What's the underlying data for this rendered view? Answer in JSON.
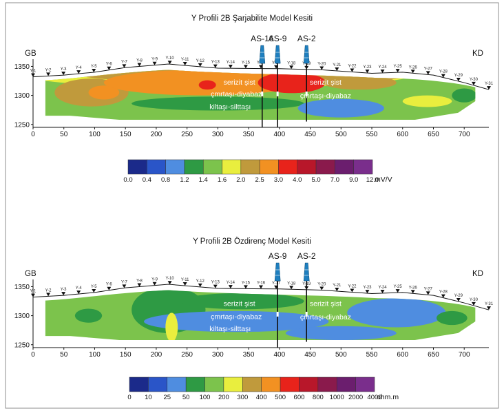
{
  "colors": {
    "background": "#ffffff",
    "frame": "#8c8c8c",
    "line": "#111111",
    "well_blue": "#1f7fbf"
  },
  "chart_data": [
    {
      "type": "heatmap",
      "title": "Y Profili 2B Şarjabilite Model Kesiti",
      "left_label": "GB",
      "right_label": "KD",
      "xlim": [
        0,
        740
      ],
      "ylim": [
        1245,
        1360
      ],
      "xticks": [
        0,
        50,
        100,
        150,
        200,
        250,
        300,
        350,
        400,
        450,
        500,
        550,
        600,
        650,
        700
      ],
      "yticks": [
        1350,
        1300,
        1250
      ],
      "stations": [
        "Y-1",
        "Y-2",
        "Y-3",
        "Y-4",
        "Y-5",
        "Y-6",
        "Y-7",
        "Y-8",
        "Y-9",
        "Y-10",
        "Y-11",
        "Y-12",
        "Y-13",
        "Y-14",
        "Y-15",
        "Y-16",
        "Y-17",
        "Y-18",
        "Y-19",
        "Y-20",
        "Y-21",
        "Y-22",
        "Y-23",
        "Y-24",
        "Y-25",
        "Y-26",
        "Y-27",
        "Y-28",
        "Y-29",
        "Y-30",
        "Y-31"
      ],
      "topography": [
        {
          "x": 0,
          "z": 1332
        },
        {
          "x": 50,
          "z": 1335
        },
        {
          "x": 100,
          "z": 1340
        },
        {
          "x": 150,
          "z": 1348
        },
        {
          "x": 220,
          "z": 1354
        },
        {
          "x": 300,
          "z": 1347
        },
        {
          "x": 400,
          "z": 1346
        },
        {
          "x": 470,
          "z": 1344
        },
        {
          "x": 550,
          "z": 1338
        },
        {
          "x": 600,
          "z": 1340
        },
        {
          "x": 650,
          "z": 1335
        },
        {
          "x": 700,
          "z": 1322
        },
        {
          "x": 740,
          "z": 1310
        }
      ],
      "wells": [
        {
          "name": "AS-16",
          "x": 372,
          "bottom": 1245
        },
        {
          "name": "AS-9",
          "x": 397,
          "bottom": 1245
        },
        {
          "name": "AS-2",
          "x": 444,
          "bottom": 1255
        }
      ],
      "lithology_labels": [
        {
          "text": "serizit şist",
          "x": 335,
          "z": 1322
        },
        {
          "text": "çmrtaşı-diyabaz",
          "x": 330,
          "z": 1302
        },
        {
          "text": "kiltaşı-silttaşı",
          "x": 320,
          "z": 1280
        },
        {
          "text": "serizit şist",
          "x": 475,
          "z": 1322
        },
        {
          "text": "çmrtaşı-diyabaz",
          "x": 475,
          "z": 1299
        }
      ],
      "colorbar": {
        "ticks": [
          "0.0",
          "0.4",
          "0.8",
          "1.2",
          "1.4",
          "1.6",
          "2.0",
          "2.5",
          "3.0",
          "4.0",
          "5.0",
          "7.0",
          "9.0",
          "12.0"
        ],
        "unit": "mV/V",
        "colors": [
          "#1b2a8a",
          "#2a55c8",
          "#4f8de0",
          "#2e9a44",
          "#7cc34c",
          "#e9ee3e",
          "#c09a3c",
          "#f29122",
          "#e8231b",
          "#b8172a",
          "#8a1a4c",
          "#6b1e6e",
          "#7a2e8c"
        ]
      },
      "model_regions": [
        {
          "value": "2.5",
          "description": "brown band below the model top"
        },
        {
          "value": "3.0",
          "description": "large orange body x 150-400"
        },
        {
          "value": "5.0",
          "description": "red cores near AS-16 and AS-2"
        },
        {
          "value": "1.4",
          "description": "green lower bands"
        },
        {
          "value": "0.8",
          "description": "blue lenses near the base"
        }
      ]
    },
    {
      "type": "heatmap",
      "title": "Y Profili 2B Özdirenç Model Kesiti",
      "left_label": "GB",
      "right_label": "KD",
      "xlim": [
        0,
        740
      ],
      "ylim": [
        1245,
        1360
      ],
      "xticks": [
        0,
        50,
        100,
        150,
        200,
        250,
        300,
        350,
        400,
        450,
        500,
        550,
        600,
        650,
        700
      ],
      "yticks": [
        1350,
        1300,
        1250
      ],
      "stations": [
        "Y-1",
        "Y-2",
        "Y-3",
        "Y-4",
        "Y-5",
        "Y-6",
        "Y-7",
        "Y-8",
        "Y-9",
        "Y-10",
        "Y-11",
        "Y-12",
        "Y-13",
        "Y-14",
        "Y-15",
        "Y-16",
        "Y-17",
        "Y-18",
        "Y-19",
        "Y-20",
        "Y-21",
        "Y-22",
        "Y-23",
        "Y-24",
        "Y-25",
        "Y-26",
        "Y-27",
        "Y-28",
        "Y-29",
        "Y-30",
        "Y-31"
      ],
      "topography": [
        {
          "x": 0,
          "z": 1332
        },
        {
          "x": 50,
          "z": 1335
        },
        {
          "x": 100,
          "z": 1340
        },
        {
          "x": 150,
          "z": 1348
        },
        {
          "x": 220,
          "z": 1354
        },
        {
          "x": 300,
          "z": 1347
        },
        {
          "x": 400,
          "z": 1346
        },
        {
          "x": 470,
          "z": 1344
        },
        {
          "x": 550,
          "z": 1338
        },
        {
          "x": 600,
          "z": 1340
        },
        {
          "x": 650,
          "z": 1335
        },
        {
          "x": 700,
          "z": 1322
        },
        {
          "x": 740,
          "z": 1310
        }
      ],
      "wells": [
        {
          "name": "AS-9",
          "x": 397,
          "bottom": 1245
        },
        {
          "name": "AS-2",
          "x": 444,
          "bottom": 1255
        }
      ],
      "lithology_labels": [
        {
          "text": "serizit şist",
          "x": 335,
          "z": 1320
        },
        {
          "text": "çmrtaşı-diyabaz",
          "x": 330,
          "z": 1298
        },
        {
          "text": "kiltaşı-silttaşı",
          "x": 320,
          "z": 1277
        },
        {
          "text": "serizit şist",
          "x": 475,
          "z": 1320
        },
        {
          "text": "çmrtaşı-diyabaz",
          "x": 475,
          "z": 1297
        }
      ],
      "colorbar": {
        "ticks": [
          "0",
          "10",
          "25",
          "50",
          "100",
          "200",
          "300",
          "400",
          "500",
          "600",
          "800",
          "1000",
          "2000",
          "4000"
        ],
        "unit": "ohm.m",
        "colors": [
          "#1b2a8a",
          "#2a55c8",
          "#4f8de0",
          "#2e9a44",
          "#7cc34c",
          "#e9ee3e",
          "#c09a3c",
          "#f29122",
          "#e8231b",
          "#b8172a",
          "#8a1a4c",
          "#6b1e6e",
          "#7a2e8c"
        ]
      },
      "model_regions": [
        {
          "value": "100",
          "description": "light green background"
        },
        {
          "value": "50",
          "description": "blue lower bodies"
        },
        {
          "value": "200",
          "description": "dark green upper bodies"
        },
        {
          "value": "300",
          "description": "yellow streak near x 225"
        }
      ]
    }
  ]
}
